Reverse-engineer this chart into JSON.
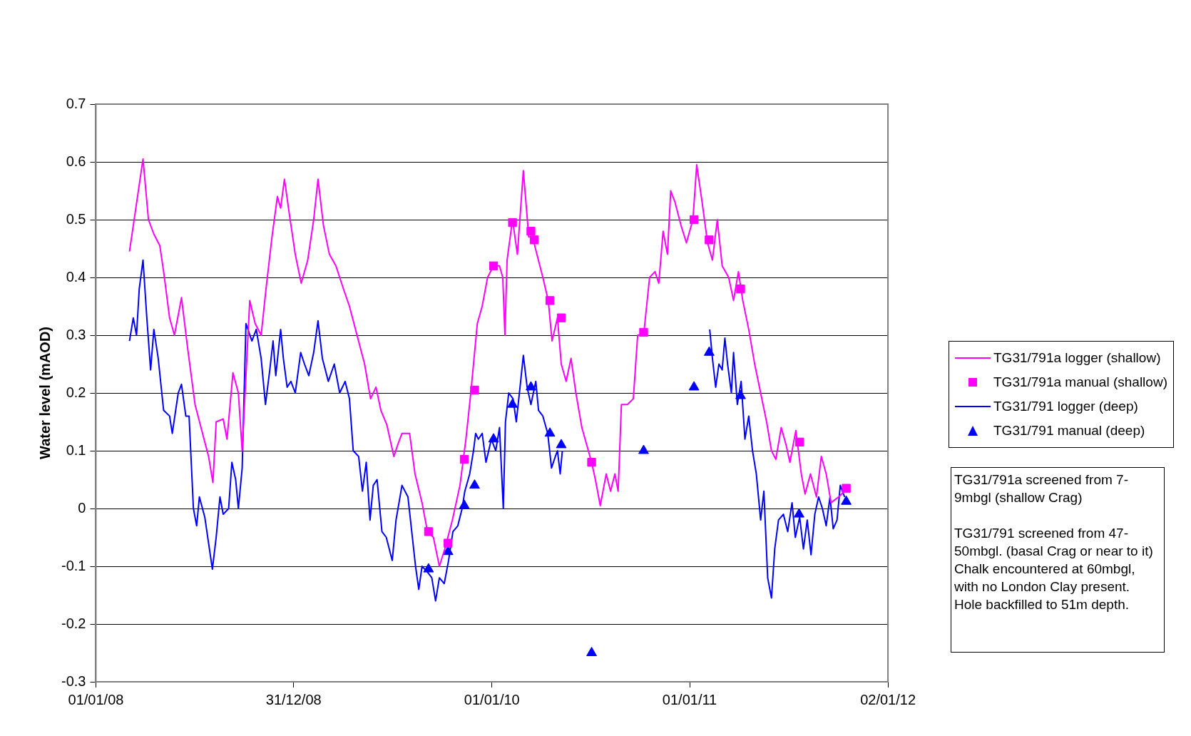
{
  "chart_data": {
    "type": "line",
    "ylabel": "Water level (mAOD)",
    "xlim": [
      "2008-01-01",
      "2012-01-02"
    ],
    "xticks": [
      {
        "value": "2008-01-01",
        "label": "01/01/08"
      },
      {
        "value": "2008-12-31",
        "label": "31/12/08"
      },
      {
        "value": "2010-01-01",
        "label": "01/01/10"
      },
      {
        "value": "2011-01-01",
        "label": "01/01/11"
      },
      {
        "value": "2012-01-02",
        "label": "02/01/12"
      }
    ],
    "ylim": [
      -0.3,
      0.7
    ],
    "yticks": [
      -0.3,
      -0.2,
      -0.1,
      0,
      0.1,
      0.2,
      0.3,
      0.4,
      0.5,
      0.6,
      0.7
    ],
    "grid": "y",
    "legend": "right",
    "annotations": [
      "TG31/791a screened from 7-9mbgl (shallow Crag)",
      "TG31/791 screened from 47-50mbgl.  (basal Crag or near to it) Chalk encountered at 60mbgl, with no London Clay present. Hole backfilled to 51m depth."
    ],
    "series": [
      {
        "name": "TG31/791a logger (shallow)",
        "type": "line",
        "marker": "none",
        "color": "#ff00ff",
        "x": [
          "2008-03-03",
          "2008-03-28",
          "2008-04-07",
          "2008-04-17",
          "2008-04-28",
          "2008-05-05",
          "2008-05-16",
          "2008-05-25",
          "2008-06-07",
          "2008-06-18",
          "2008-07-02",
          "2008-07-13",
          "2008-07-27",
          "2008-08-04",
          "2008-08-10",
          "2008-08-23",
          "2008-08-30",
          "2008-09-10",
          "2008-09-20",
          "2008-09-27",
          "2008-10-11",
          "2008-10-21",
          "2008-11-01",
          "2008-11-10",
          "2008-11-21",
          "2008-12-01",
          "2008-12-07",
          "2008-12-14",
          "2008-12-23",
          "2009-01-03",
          "2009-01-14",
          "2009-01-26",
          "2009-02-06",
          "2009-02-14",
          "2009-02-24",
          "2009-03-07",
          "2009-03-19",
          "2009-04-02",
          "2009-04-13",
          "2009-04-27",
          "2009-05-11",
          "2009-05-22",
          "2009-06-01",
          "2009-06-10",
          "2009-06-21",
          "2009-07-04",
          "2009-07-11",
          "2009-07-19",
          "2009-08-02",
          "2009-08-12",
          "2009-08-25",
          "2009-09-04",
          "2009-09-15",
          "2009-09-26",
          "2009-10-06",
          "2009-10-20",
          "2009-11-03",
          "2009-11-14",
          "2009-11-23",
          "2009-12-05",
          "2009-12-14",
          "2009-12-24",
          "2010-01-04",
          "2010-01-15",
          "2010-01-21",
          "2010-01-25",
          "2010-01-29",
          "2010-02-08",
          "2010-02-17",
          "2010-02-28",
          "2010-03-10",
          "2010-03-17",
          "2010-03-25",
          "2010-04-05",
          "2010-04-15",
          "2010-04-22",
          "2010-05-02",
          "2010-05-09",
          "2010-05-18",
          "2010-05-27",
          "2010-06-05",
          "2010-06-16",
          "2010-06-28",
          "2010-07-04",
          "2010-07-11",
          "2010-07-20",
          "2010-07-31",
          "2010-08-08",
          "2010-08-16",
          "2010-08-22",
          "2010-08-28",
          "2010-09-08",
          "2010-09-19",
          "2010-09-27",
          "2010-10-08",
          "2010-10-19",
          "2010-10-29",
          "2010-11-05",
          "2010-11-13",
          "2010-11-21",
          "2010-11-27",
          "2010-12-05",
          "2010-12-16",
          "2010-12-26",
          "2011-01-07",
          "2011-01-14",
          "2011-01-24",
          "2011-02-03",
          "2011-02-12",
          "2011-02-21",
          "2011-03-02",
          "2011-03-14",
          "2011-03-23",
          "2011-04-01",
          "2011-04-09",
          "2011-04-20",
          "2011-05-01",
          "2011-05-12",
          "2011-05-23",
          "2011-06-01",
          "2011-06-09",
          "2011-06-19",
          "2011-06-28",
          "2011-07-05",
          "2011-07-16",
          "2011-07-26",
          "2011-08-02",
          "2011-08-12",
          "2011-08-23",
          "2011-09-01",
          "2011-09-10",
          "2011-09-19",
          "2011-10-03",
          "2011-10-14"
        ],
        "values": [
          0.445,
          0.605,
          0.5,
          0.475,
          0.455,
          0.41,
          0.33,
          0.3,
          0.365,
          0.28,
          0.18,
          0.14,
          0.09,
          0.045,
          0.15,
          0.155,
          0.12,
          0.235,
          0.2,
          0.1,
          0.36,
          0.32,
          0.3,
          0.38,
          0.47,
          0.54,
          0.52,
          0.57,
          0.51,
          0.44,
          0.39,
          0.43,
          0.5,
          0.57,
          0.49,
          0.44,
          0.42,
          0.38,
          0.35,
          0.3,
          0.25,
          0.19,
          0.21,
          0.17,
          0.145,
          0.09,
          0.11,
          0.13,
          0.13,
          0.06,
          0.01,
          -0.04,
          -0.05,
          -0.1,
          -0.07,
          -0.02,
          0.04,
          0.12,
          0.2,
          0.32,
          0.35,
          0.4,
          0.42,
          0.42,
          0.4,
          0.3,
          0.43,
          0.5,
          0.44,
          0.585,
          0.47,
          0.47,
          0.44,
          0.4,
          0.36,
          0.29,
          0.33,
          0.25,
          0.22,
          0.26,
          0.2,
          0.14,
          0.1,
          0.08,
          0.05,
          0.005,
          0.06,
          0.03,
          0.06,
          0.03,
          0.18,
          0.18,
          0.19,
          0.3,
          0.3,
          0.4,
          0.41,
          0.39,
          0.48,
          0.44,
          0.55,
          0.53,
          0.49,
          0.46,
          0.5,
          0.595,
          0.53,
          0.46,
          0.43,
          0.5,
          0.42,
          0.4,
          0.36,
          0.41,
          0.36,
          0.31,
          0.25,
          0.2,
          0.15,
          0.1,
          0.085,
          0.14,
          0.11,
          0.08,
          0.135,
          0.06,
          0.025,
          0.06,
          0.02,
          0.09,
          0.06,
          0.01,
          0.02,
          0.03
        ]
      },
      {
        "name": "TG31/791a manual (shallow)",
        "type": "scatter",
        "marker": "square",
        "color": "#ff00ff",
        "x": [
          "2009-09-06",
          "2009-10-12",
          "2009-11-11",
          "2009-11-30",
          "2010-01-04",
          "2010-02-08",
          "2010-03-14",
          "2010-03-20",
          "2010-04-18",
          "2010-05-09",
          "2010-07-04",
          "2010-10-08",
          "2011-01-09",
          "2011-02-06",
          "2011-04-05",
          "2011-07-23",
          "2011-10-17"
        ],
        "values": [
          -0.04,
          -0.06,
          0.085,
          0.205,
          0.42,
          0.495,
          0.48,
          0.465,
          0.36,
          0.33,
          0.08,
          0.305,
          0.5,
          0.465,
          0.38,
          0.115,
          0.035
        ]
      },
      {
        "name": "TG31/791 logger (deep)",
        "type": "line",
        "marker": "none",
        "color": "#0000ff",
        "x": [
          "2008-03-03",
          "2008-03-10",
          "2008-03-16",
          "2008-03-21",
          "2008-03-28",
          "2008-04-04",
          "2008-04-11",
          "2008-04-17",
          "2008-04-25",
          "2008-05-05",
          "2008-05-16",
          "2008-05-21",
          "2008-06-01",
          "2008-06-07",
          "2008-06-15",
          "2008-06-21",
          "2008-06-29",
          "2008-07-05",
          "2008-07-10",
          "2008-07-20",
          "2008-07-27",
          "2008-08-03",
          "2008-08-10",
          "2008-08-17",
          "2008-08-23",
          "2008-09-02",
          "2008-09-08",
          "2008-09-15",
          "2008-09-20",
          "2008-09-27",
          "2008-10-04",
          "2008-10-15",
          "2008-10-23",
          "2008-11-01",
          "2008-11-09",
          "2008-11-17",
          "2008-11-23",
          "2008-11-28",
          "2008-12-07",
          "2008-12-12",
          "2008-12-19",
          "2008-12-26",
          "2009-01-03",
          "2009-01-13",
          "2009-01-20",
          "2009-01-28",
          "2009-02-06",
          "2009-02-14",
          "2009-02-22",
          "2009-03-05",
          "2009-03-16",
          "2009-03-26",
          "2009-04-05",
          "2009-04-13",
          "2009-04-20",
          "2009-04-30",
          "2009-05-07",
          "2009-05-14",
          "2009-05-21",
          "2009-05-27",
          "2009-06-03",
          "2009-06-12",
          "2009-06-20",
          "2009-07-01",
          "2009-07-08",
          "2009-07-19",
          "2009-07-30",
          "2009-08-06",
          "2009-08-13",
          "2009-08-19",
          "2009-08-25",
          "2009-09-04",
          "2009-09-12",
          "2009-09-19",
          "2009-09-26",
          "2009-10-05",
          "2009-10-13",
          "2009-10-21",
          "2009-10-30",
          "2009-11-07",
          "2009-11-12",
          "2009-11-21",
          "2009-11-28",
          "2009-12-02",
          "2009-12-07",
          "2009-12-14",
          "2009-12-21",
          "2009-12-31",
          "2010-01-08",
          "2010-01-15",
          "2010-01-22",
          "2010-01-26",
          "2010-02-01",
          "2010-02-09",
          "2010-02-15",
          "2010-02-23",
          "2010-02-28",
          "2010-03-07",
          "2010-03-14",
          "2010-03-23",
          "2010-03-28",
          "2010-04-05",
          "2010-04-14",
          "2010-04-21",
          "2010-04-28",
          "2010-05-02",
          "2010-05-07",
          "2010-05-11",
          "2010-09-01",
          "2011-02-07",
          "2011-02-12",
          "2011-02-18",
          "2011-02-24",
          "2011-03-02",
          "2011-03-07",
          "2011-03-12",
          "2011-03-19",
          "2011-03-23",
          "2011-03-30",
          "2011-04-06",
          "2011-04-13",
          "2011-04-20",
          "2011-04-27",
          "2011-05-04",
          "2011-05-12",
          "2011-05-18",
          "2011-05-25",
          "2011-06-01",
          "2011-06-07",
          "2011-06-14",
          "2011-06-23",
          "2011-07-01",
          "2011-07-09",
          "2011-07-15",
          "2011-07-23",
          "2011-07-30",
          "2011-08-06",
          "2011-08-13",
          "2011-08-20",
          "2011-08-27",
          "2011-09-03",
          "2011-09-10",
          "2011-09-17",
          "2011-09-23",
          "2011-09-30",
          "2011-10-06",
          "2011-10-14"
        ],
        "values": [
          0.29,
          0.33,
          0.3,
          0.38,
          0.43,
          0.33,
          0.24,
          0.31,
          0.26,
          0.17,
          0.16,
          0.13,
          0.2,
          0.215,
          0.16,
          0.16,
          0.0,
          -0.03,
          0.02,
          -0.015,
          -0.06,
          -0.105,
          -0.05,
          0.02,
          -0.01,
          0.0,
          0.08,
          0.05,
          0.0,
          0.07,
          0.32,
          0.29,
          0.31,
          0.26,
          0.18,
          0.24,
          0.29,
          0.23,
          0.31,
          0.26,
          0.21,
          0.22,
          0.2,
          0.27,
          0.25,
          0.23,
          0.27,
          0.325,
          0.26,
          0.22,
          0.25,
          0.2,
          0.22,
          0.19,
          0.1,
          0.09,
          0.03,
          0.08,
          -0.02,
          0.04,
          0.05,
          -0.04,
          -0.05,
          -0.09,
          -0.02,
          0.04,
          0.02,
          -0.04,
          -0.1,
          -0.14,
          -0.1,
          -0.11,
          -0.12,
          -0.16,
          -0.12,
          -0.13,
          -0.09,
          -0.04,
          -0.03,
          0.0,
          0.03,
          0.06,
          0.1,
          0.13,
          0.12,
          0.13,
          0.08,
          0.12,
          0.1,
          0.14,
          0.0,
          0.15,
          0.2,
          0.19,
          0.15,
          0.22,
          0.265,
          0.21,
          0.18,
          0.22,
          0.17,
          0.16,
          0.13,
          0.07,
          0.09,
          0.1,
          0.06,
          0.1,
          null,
          0.31,
          0.26,
          0.21,
          0.25,
          0.24,
          0.295,
          0.25,
          0.2,
          0.27,
          0.18,
          0.22,
          0.12,
          0.16,
          0.1,
          0.06,
          -0.02,
          0.03,
          -0.12,
          -0.155,
          -0.07,
          -0.02,
          -0.01,
          -0.04,
          0.01,
          -0.05,
          -0.015,
          -0.07,
          -0.02,
          -0.08,
          -0.01,
          0.02,
          0.0,
          -0.03,
          0.02,
          -0.035,
          -0.02,
          0.04,
          0.02
        ]
      },
      {
        "name": "TG31/791 manual (deep)",
        "type": "scatter",
        "marker": "triangle",
        "color": "#0000ff",
        "x": [
          "2009-09-06",
          "2009-10-12",
          "2009-11-11",
          "2009-11-30",
          "2010-01-04",
          "2010-02-08",
          "2010-03-14",
          "2010-04-18",
          "2010-05-09",
          "2010-07-04",
          "2010-10-08",
          "2011-01-09",
          "2011-02-06",
          "2011-04-05",
          "2011-07-22",
          "2011-10-17"
        ],
        "values": [
          -0.105,
          -0.075,
          0.005,
          0.04,
          0.12,
          0.18,
          0.21,
          0.13,
          0.11,
          -0.25,
          0.1,
          0.21,
          0.27,
          0.195,
          -0.01,
          0.012
        ]
      }
    ]
  }
}
